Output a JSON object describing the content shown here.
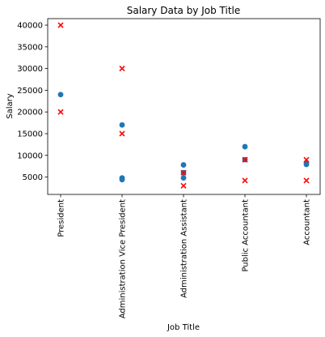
{
  "chart_data": {
    "type": "scatter",
    "title": "Salary Data by Job Title",
    "xlabel": "Job Title",
    "ylabel": "Salary",
    "categories": [
      "President",
      "Administration Vice President",
      "Administration Assistant",
      "Public Accountant",
      "Accountant"
    ],
    "ylim": [
      1000,
      41500
    ],
    "yticks": [
      5000,
      10000,
      15000,
      20000,
      25000,
      30000,
      35000,
      40000
    ],
    "grid": false,
    "legend": "none",
    "series": [
      {
        "marker": "circle",
        "color": "#1f77b4",
        "points": [
          {
            "x": "President",
            "y": 24000
          },
          {
            "x": "Administration Vice President",
            "y": 17000
          },
          {
            "x": "Administration Vice President",
            "y": 4800
          },
          {
            "x": "Administration Vice President",
            "y": 4400
          },
          {
            "x": "Administration Assistant",
            "y": 7800
          },
          {
            "x": "Administration Assistant",
            "y": 6000
          },
          {
            "x": "Administration Assistant",
            "y": 4800
          },
          {
            "x": "Public Accountant",
            "y": 12000
          },
          {
            "x": "Public Accountant",
            "y": 9000
          },
          {
            "x": "Accountant",
            "y": 8300
          },
          {
            "x": "Accountant",
            "y": 7900
          }
        ]
      },
      {
        "marker": "x",
        "color": "#ff0000",
        "points": [
          {
            "x": "President",
            "y": 40000
          },
          {
            "x": "President",
            "y": 20000
          },
          {
            "x": "Administration Vice President",
            "y": 30000
          },
          {
            "x": "Administration Vice President",
            "y": 15000
          },
          {
            "x": "Administration Assistant",
            "y": 6000
          },
          {
            "x": "Administration Assistant",
            "y": 3000
          },
          {
            "x": "Public Accountant",
            "y": 9000
          },
          {
            "x": "Public Accountant",
            "y": 4200
          },
          {
            "x": "Accountant",
            "y": 9000
          },
          {
            "x": "Accountant",
            "y": 4200
          }
        ]
      }
    ]
  }
}
